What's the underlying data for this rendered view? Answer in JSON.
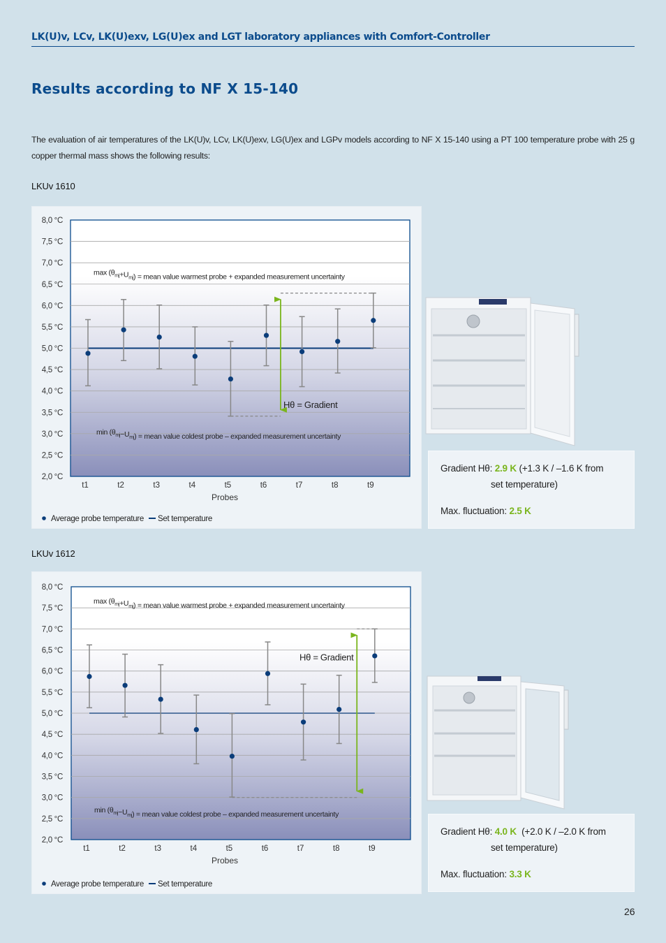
{
  "header": {
    "title": "LK(U)v, LCv, LK(U)exv, LG(U)ex and LGT laboratory appliances with Comfort-Controller"
  },
  "section_title": "Results according to NF X 15-140",
  "intro": "The evaluation of air temperatures of the LK(U)v, LCv, LK(U)exv, LG(U)ex and LGPv models according to NF X 15-140 using a PT 100 temperature probe with 25 g copper thermal mass shows the following results:",
  "colors": {
    "title": "#0b4b8c",
    "accent_green": "#7ab51d",
    "point": "#0b3d7a",
    "set_line": "#0b3d7a",
    "error_bar": "#888888"
  },
  "chart_data": [
    {
      "type": "scatter",
      "model": "LKUv 1610",
      "categories": [
        "t1",
        "t2",
        "t3",
        "t4",
        "t5",
        "t6",
        "t7",
        "t8",
        "t9"
      ],
      "xlabel": "Probes",
      "ylabel": "",
      "ylim": [
        2.0,
        8.0
      ],
      "yticks": [
        "8,0 °C",
        "7,5 °C",
        "7,0 °C",
        "6,5 °C",
        "6,0 °C",
        "5,5 °C",
        "5,0 °C",
        "4,5 °C",
        "4,0 °C",
        "3,5 °C",
        "3,0 °C",
        "2,5 °C",
        "2,0 °C"
      ],
      "set_temperature": 5.0,
      "series": [
        {
          "name": "Average probe temperature",
          "values": [
            4.88,
            5.43,
            5.26,
            4.81,
            4.28,
            5.3,
            4.92,
            5.16,
            5.65
          ],
          "upper": [
            5.67,
            6.14,
            6.01,
            5.5,
            5.16,
            6.01,
            5.74,
            5.92,
            6.29
          ],
          "lower": [
            4.12,
            4.71,
            4.52,
            4.14,
            3.41,
            4.59,
            4.1,
            4.42,
            5.01
          ]
        }
      ],
      "gradient": {
        "max": 6.29,
        "min": 3.41,
        "label": "Hθ = Gradient"
      },
      "annotations": {
        "max": "max (θmj+Umj) = mean value warmest probe + expanded measurement uncertainty",
        "min": "min (θmj−Umj) = mean value coldest probe – expanded measurement uncertainty"
      },
      "legend": {
        "points": "Average probe temperature",
        "line": "Set temperature",
        "position": "bottom-left"
      },
      "grid": true
    },
    {
      "type": "scatter",
      "model": "LKUv 1612",
      "categories": [
        "t1",
        "t2",
        "t3",
        "t4",
        "t5",
        "t6",
        "t7",
        "t8",
        "t9"
      ],
      "xlabel": "Probes",
      "ylabel": "",
      "ylim": [
        2.0,
        8.0
      ],
      "yticks": [
        "8,0 °C",
        "7,5 °C",
        "7,0 °C",
        "6,5 °C",
        "6,0 °C",
        "5,5 °C",
        "5,0 °C",
        "4,5 °C",
        "4,0 °C",
        "3,5 °C",
        "3,0 °C",
        "2,5 °C",
        "2,0 °C"
      ],
      "set_temperature": 5.0,
      "series": [
        {
          "name": "Average probe temperature",
          "values": [
            5.87,
            5.66,
            5.33,
            4.61,
            3.98,
            5.94,
            4.79,
            5.09,
            6.36
          ],
          "upper": [
            6.62,
            6.4,
            6.15,
            5.43,
            4.99,
            6.69,
            5.69,
            5.9,
            7.0
          ],
          "lower": [
            5.13,
            4.91,
            4.52,
            3.8,
            3.01,
            5.2,
            3.89,
            4.28,
            5.73
          ]
        }
      ],
      "gradient": {
        "max": 7.0,
        "min": 3.0,
        "label": "Hθ = Gradient"
      },
      "annotations": {
        "max": "max (θmj+Umj) = mean value warmest probe + expanded measurement uncertainty",
        "min": "min (θmj−Umj) = mean value coldest probe – expanded measurement uncertainty"
      },
      "legend": {
        "points": "Average probe temperature",
        "line": "Set temperature",
        "position": "bottom-left"
      },
      "grid": true
    }
  ],
  "results": [
    {
      "gradient_label": "Gradient Hθ: ",
      "gradient_value": "2.9 K",
      "gradient_detail": " (+1.3 K / –1.6 K from",
      "gradient_detail2": "set temperature)",
      "fluct_label": "Max. fluctuation: ",
      "fluct_value": "2.5 K"
    },
    {
      "gradient_label": "Gradient Hθ: ",
      "gradient_value": "4.0 K",
      "gradient_detail": "  (+2.0 K / –2.0 K from",
      "gradient_detail2": "set temperature)",
      "fluct_label": "Max. fluctuation: ",
      "fluct_value": "3.3 K"
    }
  ],
  "page_number": "26"
}
